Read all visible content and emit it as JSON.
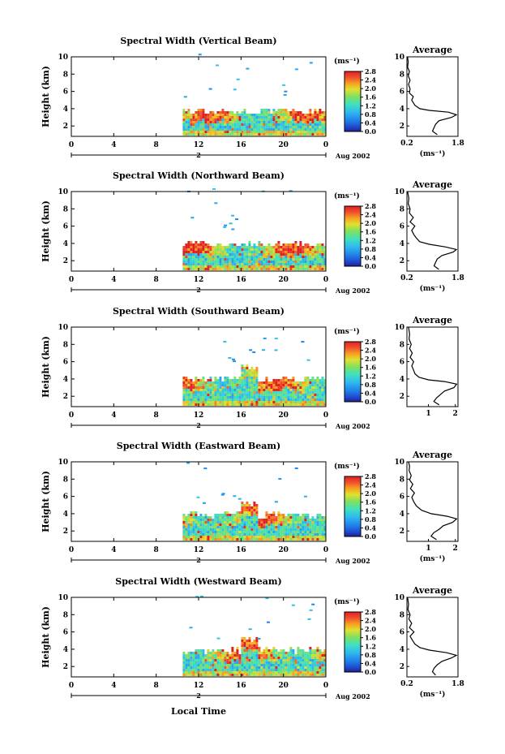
{
  "chart_data": [
    {
      "type": "heatmap",
      "title": "Spectral Width (Vertical Beam)",
      "ylabel": "Height (km)",
      "x_ticks": [
        "0",
        "4",
        "8",
        "12",
        "16",
        "20",
        "0"
      ],
      "xlim": [
        0,
        24
      ],
      "ylim": [
        0.8,
        10
      ],
      "y_ticks": [
        "2",
        "4",
        "6",
        "8",
        "10"
      ],
      "day_marker": "2",
      "date_label": "Aug 2002",
      "colorbar_unit": "(ms⁻¹)",
      "colorbar_ticks": [
        "2.8",
        "2.4",
        "2.0",
        "1.6",
        "1.2",
        "0.8",
        "0.4",
        "0.0"
      ],
      "colorbar_range": [
        0,
        2.8
      ],
      "data_start_hour": 10.5,
      "cloud_top_km": 3.9,
      "profile": {
        "title": "Average",
        "xlabel": "(ms⁻¹)",
        "x_ticks": [
          "0.2",
          "1.8"
        ],
        "xlim": [
          0.2,
          1.8
        ],
        "ylim": [
          0.8,
          10
        ],
        "y_ticks": [
          "2",
          "4",
          "6",
          "8",
          "10"
        ],
        "points": [
          [
            1.15,
            1.0
          ],
          [
            1.0,
            1.4
          ],
          [
            1.05,
            1.8
          ],
          [
            1.1,
            2.2
          ],
          [
            1.2,
            2.6
          ],
          [
            1.6,
            3.0
          ],
          [
            1.75,
            3.3
          ],
          [
            1.5,
            3.6
          ],
          [
            0.9,
            3.8
          ],
          [
            0.6,
            4.0
          ],
          [
            0.45,
            4.4
          ],
          [
            0.35,
            5.0
          ],
          [
            0.4,
            5.4
          ],
          [
            0.28,
            5.8
          ],
          [
            0.3,
            6.3
          ],
          [
            0.25,
            6.8
          ],
          [
            0.3,
            7.3
          ],
          [
            0.24,
            7.8
          ],
          [
            0.28,
            8.3
          ],
          [
            0.22,
            8.8
          ],
          [
            0.24,
            9.4
          ],
          [
            0.22,
            10.0
          ]
        ]
      }
    },
    {
      "type": "heatmap",
      "title": "Spectral Width (Northward Beam)",
      "ylabel": "Height (km)",
      "x_ticks": [
        "0",
        "4",
        "8",
        "12",
        "16",
        "20",
        "0"
      ],
      "xlim": [
        0,
        24
      ],
      "ylim": [
        0.8,
        10
      ],
      "y_ticks": [
        "2",
        "4",
        "6",
        "8",
        "10"
      ],
      "day_marker": "2",
      "date_label": "Aug 2002",
      "colorbar_unit": "(ms⁻¹)",
      "colorbar_ticks": [
        "2.8",
        "2.4",
        "2.0",
        "1.6",
        "1.2",
        "0.8",
        "0.4",
        "0.0"
      ],
      "colorbar_range": [
        0,
        2.8
      ],
      "data_start_hour": 10.5,
      "cloud_top_km": 4.1,
      "profile": {
        "title": "Average",
        "xlabel": "(ms⁻¹)",
        "x_ticks": [
          "0.2",
          "1.8"
        ],
        "xlim": [
          0.2,
          1.8
        ],
        "ylim": [
          0.8,
          10
        ],
        "y_ticks": [
          "2",
          "4",
          "6",
          "8",
          "10"
        ],
        "points": [
          [
            1.2,
            1.0
          ],
          [
            1.05,
            1.4
          ],
          [
            1.1,
            1.8
          ],
          [
            1.15,
            2.2
          ],
          [
            1.3,
            2.6
          ],
          [
            1.65,
            3.0
          ],
          [
            1.75,
            3.3
          ],
          [
            1.4,
            3.6
          ],
          [
            0.9,
            3.9
          ],
          [
            0.6,
            4.2
          ],
          [
            0.5,
            4.6
          ],
          [
            0.42,
            5.0
          ],
          [
            0.35,
            5.5
          ],
          [
            0.45,
            6.0
          ],
          [
            0.3,
            6.5
          ],
          [
            0.4,
            7.0
          ],
          [
            0.28,
            7.5
          ],
          [
            0.3,
            8.0
          ],
          [
            0.24,
            8.6
          ],
          [
            0.26,
            9.2
          ],
          [
            0.22,
            10.0
          ]
        ]
      }
    },
    {
      "type": "heatmap",
      "title": "Spectral Width (Southward Beam)",
      "ylabel": "Height (km)",
      "x_ticks": [
        "0",
        "4",
        "8",
        "12",
        "16",
        "20",
        "0"
      ],
      "xlim": [
        0,
        24
      ],
      "ylim": [
        0.8,
        10
      ],
      "y_ticks": [
        "2",
        "4",
        "6",
        "8",
        "10"
      ],
      "day_marker": "2",
      "date_label": "Aug 2002",
      "colorbar_unit": "(ms⁻¹)",
      "colorbar_ticks": [
        "2.8",
        "2.4",
        "2.0",
        "1.6",
        "1.2",
        "0.8",
        "0.4",
        "0.0"
      ],
      "colorbar_range": [
        0,
        2.8
      ],
      "data_start_hour": 10.5,
      "cloud_top_km": 4.1,
      "profile": {
        "title": "Average",
        "xlabel": "",
        "x_ticks": [
          "1",
          "2"
        ],
        "xlim": [
          0.2,
          2.1
        ],
        "ylim": [
          0.8,
          10
        ],
        "y_ticks": [
          "2",
          "4",
          "6",
          "8",
          "10"
        ],
        "points": [
          [
            1.4,
            1.0
          ],
          [
            1.2,
            1.4
          ],
          [
            1.3,
            1.8
          ],
          [
            1.45,
            2.2
          ],
          [
            1.6,
            2.6
          ],
          [
            1.95,
            3.0
          ],
          [
            2.05,
            3.4
          ],
          [
            1.6,
            3.7
          ],
          [
            1.0,
            3.9
          ],
          [
            0.65,
            4.2
          ],
          [
            0.5,
            4.6
          ],
          [
            0.45,
            5.0
          ],
          [
            0.38,
            5.5
          ],
          [
            0.45,
            6.0
          ],
          [
            0.32,
            6.5
          ],
          [
            0.4,
            7.0
          ],
          [
            0.3,
            7.5
          ],
          [
            0.36,
            8.0
          ],
          [
            0.28,
            8.6
          ],
          [
            0.3,
            9.2
          ],
          [
            0.26,
            10.0
          ]
        ]
      }
    },
    {
      "type": "heatmap",
      "title": "Spectral Width (Eastward Beam)",
      "ylabel": "Height (km)",
      "x_ticks": [
        "0",
        "4",
        "8",
        "12",
        "16",
        "20",
        "0"
      ],
      "xlim": [
        0,
        24
      ],
      "ylim": [
        0.8,
        10
      ],
      "y_ticks": [
        "2",
        "4",
        "6",
        "8",
        "10"
      ],
      "day_marker": "2",
      "date_label": "Aug 2002",
      "colorbar_unit": "(ms⁻¹)",
      "colorbar_ticks": [
        "2.8",
        "2.4",
        "2.0",
        "1.6",
        "1.2",
        "0.8",
        "0.4",
        "0.0"
      ],
      "colorbar_range": [
        0,
        2.8
      ],
      "data_start_hour": 10.5,
      "cloud_top_km": 4.0,
      "profile": {
        "title": "Average",
        "xlabel": "(ms⁻¹)",
        "x_ticks": [
          "1",
          "2"
        ],
        "xlim": [
          0.2,
          2.1
        ],
        "ylim": [
          0.8,
          10
        ],
        "y_ticks": [
          "2",
          "4",
          "6",
          "8",
          "10"
        ],
        "points": [
          [
            1.3,
            1.0
          ],
          [
            1.1,
            1.4
          ],
          [
            1.2,
            1.8
          ],
          [
            1.4,
            2.2
          ],
          [
            1.55,
            2.6
          ],
          [
            1.9,
            3.0
          ],
          [
            2.05,
            3.4
          ],
          [
            1.7,
            3.7
          ],
          [
            1.1,
            4.0
          ],
          [
            0.75,
            4.4
          ],
          [
            0.55,
            4.9
          ],
          [
            0.45,
            5.4
          ],
          [
            0.38,
            5.9
          ],
          [
            0.48,
            6.4
          ],
          [
            0.33,
            6.9
          ],
          [
            0.42,
            7.4
          ],
          [
            0.3,
            7.9
          ],
          [
            0.36,
            8.4
          ],
          [
            0.28,
            9.0
          ],
          [
            0.3,
            9.5
          ],
          [
            0.26,
            10.0
          ]
        ]
      }
    },
    {
      "type": "heatmap",
      "title": "Spectral Width (Westward Beam)",
      "ylabel": "Height (km)",
      "x_ticks": [
        "0",
        "4",
        "8",
        "12",
        "16",
        "20",
        "0"
      ],
      "xlim": [
        0,
        24
      ],
      "ylim": [
        0.8,
        10
      ],
      "y_ticks": [
        "2",
        "4",
        "6",
        "8",
        "10"
      ],
      "day_marker": "2",
      "date_label": "Aug 2002",
      "colorbar_unit": "(ms⁻¹)",
      "colorbar_ticks": [
        "2.8",
        "2.4",
        "2.0",
        "1.6",
        "1.2",
        "0.8",
        "0.4",
        "0.0"
      ],
      "colorbar_range": [
        0,
        2.8
      ],
      "data_start_hour": 10.5,
      "cloud_top_km": 4.0,
      "profile": {
        "title": "Average",
        "xlabel": "(ms⁻¹)",
        "x_ticks": [
          "0.2",
          "1.8"
        ],
        "xlim": [
          0.2,
          1.8
        ],
        "ylim": [
          0.8,
          10
        ],
        "y_ticks": [
          "2",
          "4",
          "6",
          "8",
          "10"
        ],
        "points": [
          [
            1.1,
            1.0
          ],
          [
            1.0,
            1.4
          ],
          [
            1.05,
            1.8
          ],
          [
            1.15,
            2.2
          ],
          [
            1.3,
            2.6
          ],
          [
            1.6,
            3.0
          ],
          [
            1.75,
            3.3
          ],
          [
            1.45,
            3.6
          ],
          [
            0.9,
            3.9
          ],
          [
            0.6,
            4.2
          ],
          [
            0.45,
            4.6
          ],
          [
            0.38,
            5.0
          ],
          [
            0.3,
            5.5
          ],
          [
            0.42,
            6.0
          ],
          [
            0.28,
            6.5
          ],
          [
            0.35,
            7.0
          ],
          [
            0.26,
            7.5
          ],
          [
            0.3,
            8.0
          ],
          [
            0.23,
            8.6
          ],
          [
            0.25,
            9.2
          ],
          [
            0.22,
            10.0
          ]
        ]
      }
    }
  ],
  "xlabel": "Local Time"
}
